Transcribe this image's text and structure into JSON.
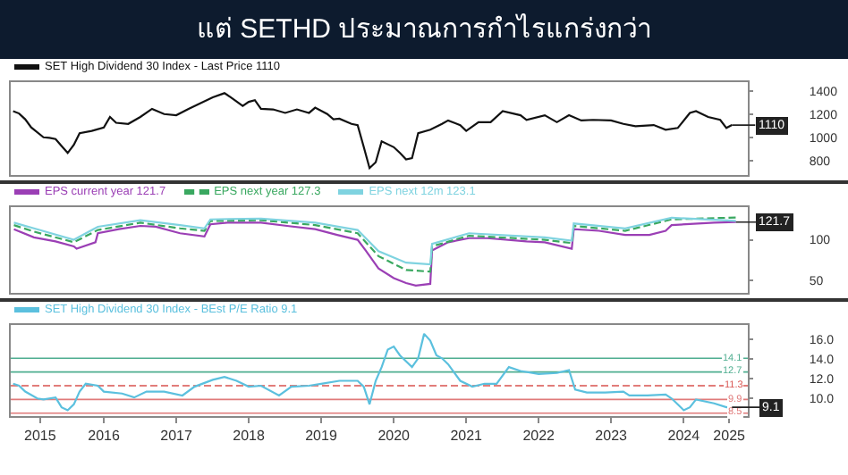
{
  "chart_data": [
    {
      "type": "line",
      "title": "แต่ SETHD ประมาณการกำไรแกร่งกว่า",
      "marker": "none",
      "legend": "top",
      "tick_labels": "y",
      "xlim": [
        "2015-03-20",
        "2025-05-20"
      ],
      "ylim": [
        680,
        1480
      ],
      "yticks": [
        800,
        1000,
        1200,
        1400
      ],
      "annotations": [
        {
          "text": "1110",
          "x": "2025-03",
          "y": 1110
        }
      ],
      "series": [
        {
          "name": "SET High Dividend 30 Index - Last Price 1110",
          "color": "#111111",
          "x": [
            "2015-04",
            "2015-05",
            "2015-06",
            "2015-07",
            "2015-09",
            "2015-10",
            "2015-11",
            "2015-12",
            "2016-01",
            "2016-02",
            "2016-03",
            "2016-05",
            "2016-07",
            "2016-08",
            "2016-09",
            "2016-11",
            "2017-01",
            "2017-03",
            "2017-05",
            "2017-07",
            "2017-09",
            "2017-11",
            "2018-01",
            "2018-03",
            "2018-04",
            "2018-06",
            "2018-07",
            "2018-08",
            "2018-09",
            "2018-11",
            "2019-01",
            "2019-03",
            "2019-05",
            "2019-06",
            "2019-08",
            "2019-09",
            "2019-10",
            "2019-12",
            "2020-01",
            "2020-02",
            "2020-03",
            "2020-04",
            "2020-05",
            "2020-07",
            "2020-08",
            "2020-09",
            "2020-10",
            "2020-11",
            "2021-01",
            "2021-03",
            "2021-04",
            "2021-06",
            "2021-07",
            "2021-09",
            "2021-11",
            "2022-01",
            "2022-04",
            "2022-05",
            "2022-08",
            "2022-10",
            "2022-12",
            "2023-02",
            "2023-04",
            "2023-07",
            "2023-09",
            "2023-11",
            "2024-02",
            "2024-04",
            "2024-06",
            "2024-08",
            "2024-09",
            "2024-11",
            "2025-01",
            "2025-02",
            "2025-03"
          ],
          "values": [
            1230,
            1210,
            1160,
            1090,
            1005,
            1000,
            990,
            930,
            870,
            940,
            1040,
            1060,
            1090,
            1180,
            1130,
            1120,
            1180,
            1250,
            1205,
            1195,
            1250,
            1300,
            1350,
            1385,
            1350,
            1275,
            1310,
            1325,
            1250,
            1245,
            1215,
            1245,
            1215,
            1260,
            1205,
            1160,
            1165,
            1120,
            1110,
            920,
            740,
            790,
            970,
            920,
            870,
            815,
            825,
            1040,
            1070,
            1120,
            1150,
            1110,
            1060,
            1135,
            1135,
            1230,
            1195,
            1155,
            1195,
            1135,
            1195,
            1150,
            1155,
            1150,
            1120,
            1100,
            1110,
            1070,
            1085,
            1215,
            1230,
            1180,
            1155,
            1085,
            1110
          ]
        }
      ]
    },
    {
      "type": "line",
      "marker": "none",
      "legend": "top",
      "tick_labels": "y",
      "xlim": [
        "2015-03-20",
        "2025-05-20"
      ],
      "ylim": [
        35,
        140
      ],
      "yticks": [
        50,
        100
      ],
      "annotations": [
        {
          "text": "121.7",
          "x": "2025-03-21",
          "y": 121.7
        }
      ],
      "series": [
        {
          "name": "EPS current year 121.7",
          "color": "#9b3fb5",
          "x": [
            "2015-04-05",
            "2015-07-15",
            "2015-11-01",
            "2016-02-01",
            "2016-02-15",
            "2016-05-20",
            "2016-06-01",
            "2016-09-15",
            "2017-01-01",
            "2017-03-20",
            "2017-07-20",
            "2017-11-20",
            "2017-12-20",
            "2018-03-15",
            "2018-09-01",
            "2019-01-10",
            "2019-06-01",
            "2019-09-20",
            "2020-01-01",
            "2020-02-10",
            "2020-04-15",
            "2020-07-01",
            "2020-09-01",
            "2020-10-20",
            "2021-01-01",
            "2021-01-10",
            "2021-04-01",
            "2021-07-15",
            "2021-10-15",
            "2022-05-01",
            "2022-08-01",
            "2022-12-15",
            "2022-12-25",
            "2023-05-01",
            "2023-09-10",
            "2024-01-10",
            "2024-04-01",
            "2024-05-01",
            "2024-12-01",
            "2025-03-21"
          ],
          "values": [
            113,
            103,
            98,
            92,
            89,
            97,
            108,
            113,
            117,
            116,
            108,
            104,
            119,
            121,
            121,
            117,
            113,
            106,
            100,
            87,
            65,
            53,
            47,
            44,
            46,
            87,
            97,
            102,
            102,
            98,
            97,
            89,
            113,
            111,
            106,
            106,
            111,
            118,
            121,
            121.7
          ]
        },
        {
          "name": "EPS next year 127.3",
          "color": "#3aa860",
          "line_style": "dashed",
          "x": [
            "2015-04-05",
            "2015-07-15",
            "2016-02-01",
            "2016-06-01",
            "2017-01-01",
            "2017-07-20",
            "2017-11-20",
            "2017-12-20",
            "2018-09-01",
            "2019-06-01",
            "2020-01-01",
            "2020-04-15",
            "2020-09-01",
            "2021-01-01",
            "2021-01-10",
            "2021-07-15",
            "2022-08-01",
            "2022-12-15",
            "2022-12-25",
            "2023-09-10",
            "2024-05-01",
            "2025-03-21"
          ],
          "values": [
            118,
            110,
            97,
            112,
            121,
            114,
            111,
            123,
            124,
            118,
            108,
            80,
            63,
            61,
            92,
            105,
            100,
            96,
            117,
            111,
            125,
            127.3
          ]
        },
        {
          "name": "EPS next 12m 123.1",
          "color": "#7fd3e0",
          "x": [
            "2015-04-05",
            "2015-07-15",
            "2016-02-01",
            "2016-06-01",
            "2017-01-01",
            "2017-07-20",
            "2017-11-20",
            "2017-12-20",
            "2018-09-01",
            "2019-06-01",
            "2020-01-01",
            "2020-04-15",
            "2020-09-01",
            "2021-01-01",
            "2021-01-10",
            "2021-07-15",
            "2022-08-01",
            "2022-12-15",
            "2022-12-25",
            "2023-09-10",
            "2024-05-01",
            "2025-03-21"
          ],
          "values": [
            121,
            114,
            100,
            116,
            124,
            118,
            114,
            125,
            126,
            121,
            112,
            86,
            72,
            70,
            95,
            108,
            103,
            99,
            120,
            114,
            127,
            123.1
          ]
        }
      ]
    },
    {
      "type": "line",
      "marker": "none",
      "legend": "top",
      "xlim": [
        "2015-03-20",
        "2025-05-20"
      ],
      "ylim": [
        8.2,
        17.5
      ],
      "yticks": [
        {
          "value": 10,
          "label": "10.0"
        },
        {
          "value": 12,
          "label": "12.0"
        },
        {
          "value": 14,
          "label": "14.0"
        },
        {
          "value": 16,
          "label": "16.0"
        }
      ],
      "xticks": [
        {
          "value": "2015-08-15",
          "label": "2015"
        },
        {
          "value": "2016-07-01",
          "label": "2016"
        },
        {
          "value": "2017-07-01",
          "label": "2017"
        },
        {
          "value": "2018-07-01",
          "label": "2018"
        },
        {
          "value": "2019-07-01",
          "label": "2019"
        },
        {
          "value": "2020-07-01",
          "label": "2020"
        },
        {
          "value": "2021-07-01",
          "label": "2021"
        },
        {
          "value": "2022-07-01",
          "label": "2022"
        },
        {
          "value": "2023-07-01",
          "label": "2023"
        },
        {
          "value": "2024-07-01",
          "label": "2024"
        },
        {
          "value": "2025-02-15",
          "label": "2025"
        }
      ],
      "annotations": [
        {
          "text": "9.1",
          "x": "2025-03",
          "y": 9.1
        }
      ],
      "ref_lines": [
        {
          "axis": "y",
          "value": 14.1,
          "label": "14.1",
          "color": "#4fae90",
          "line_style": "solid"
        },
        {
          "axis": "y",
          "value": 12.7,
          "label": "12.7",
          "color": "#4fae90",
          "line_style": "solid"
        },
        {
          "axis": "y",
          "value": 11.3,
          "label": "11.3",
          "color": "#d9534f",
          "line_style": "dashed"
        },
        {
          "axis": "y",
          "value": 9.9,
          "label": "9.9",
          "color": "#e07a7a",
          "line_style": "solid"
        },
        {
          "axis": "y",
          "value": 8.5,
          "label": "8.5",
          "color": "#e07a7a",
          "line_style": "solid"
        }
      ],
      "series": [
        {
          "name": "SET High Dividend 30 Index - BEst P/E Ratio 9.1",
          "color": "#5bc0de",
          "x": [
            "2015-04",
            "2015-05",
            "2015-06",
            "2015-08",
            "2015-09",
            "2015-11",
            "2015-12",
            "2016-01",
            "2016-02",
            "2016-03",
            "2016-04",
            "2016-06",
            "2016-07",
            "2016-10",
            "2016-12",
            "2017-02",
            "2017-05",
            "2017-08",
            "2017-10",
            "2018-01",
            "2018-03",
            "2018-05",
            "2018-07",
            "2018-09",
            "2018-12",
            "2019-02",
            "2019-05",
            "2019-07",
            "2019-10",
            "2020-01",
            "2020-02",
            "2020-03",
            "2020-04",
            "2020-05",
            "2020-06",
            "2020-07",
            "2020-08",
            "2020-10",
            "2020-11",
            "2020-12",
            "2021-01",
            "2021-02",
            "2021-03",
            "2021-04",
            "2021-06",
            "2021-08",
            "2021-10",
            "2021-12",
            "2022-02",
            "2022-04",
            "2022-07",
            "2022-10",
            "2022-12",
            "2023-01",
            "2023-03",
            "2023-06",
            "2023-09",
            "2023-10",
            "2024-01",
            "2024-04",
            "2024-05",
            "2024-07",
            "2024-08",
            "2024-09",
            "2024-12",
            "2025-02",
            "2025-03"
          ],
          "values": [
            11.5,
            11.3,
            10.7,
            10.0,
            9.9,
            10.1,
            9.1,
            8.8,
            9.4,
            10.7,
            11.5,
            11.3,
            10.7,
            10.5,
            10.1,
            10.7,
            10.7,
            10.3,
            11.2,
            11.9,
            12.2,
            11.8,
            11.2,
            11.3,
            10.3,
            11.2,
            11.3,
            11.5,
            11.8,
            11.8,
            11.2,
            9.4,
            11.8,
            13.2,
            15.0,
            15.3,
            14.4,
            13.2,
            14.1,
            16.6,
            15.9,
            14.4,
            14.1,
            13.5,
            11.8,
            11.2,
            11.5,
            11.5,
            13.2,
            12.8,
            12.5,
            12.6,
            12.9,
            10.9,
            10.6,
            10.6,
            10.7,
            10.3,
            10.3,
            10.4,
            10.0,
            8.8,
            9.1,
            9.9,
            9.5,
            9.1,
            9.1
          ]
        }
      ]
    }
  ]
}
